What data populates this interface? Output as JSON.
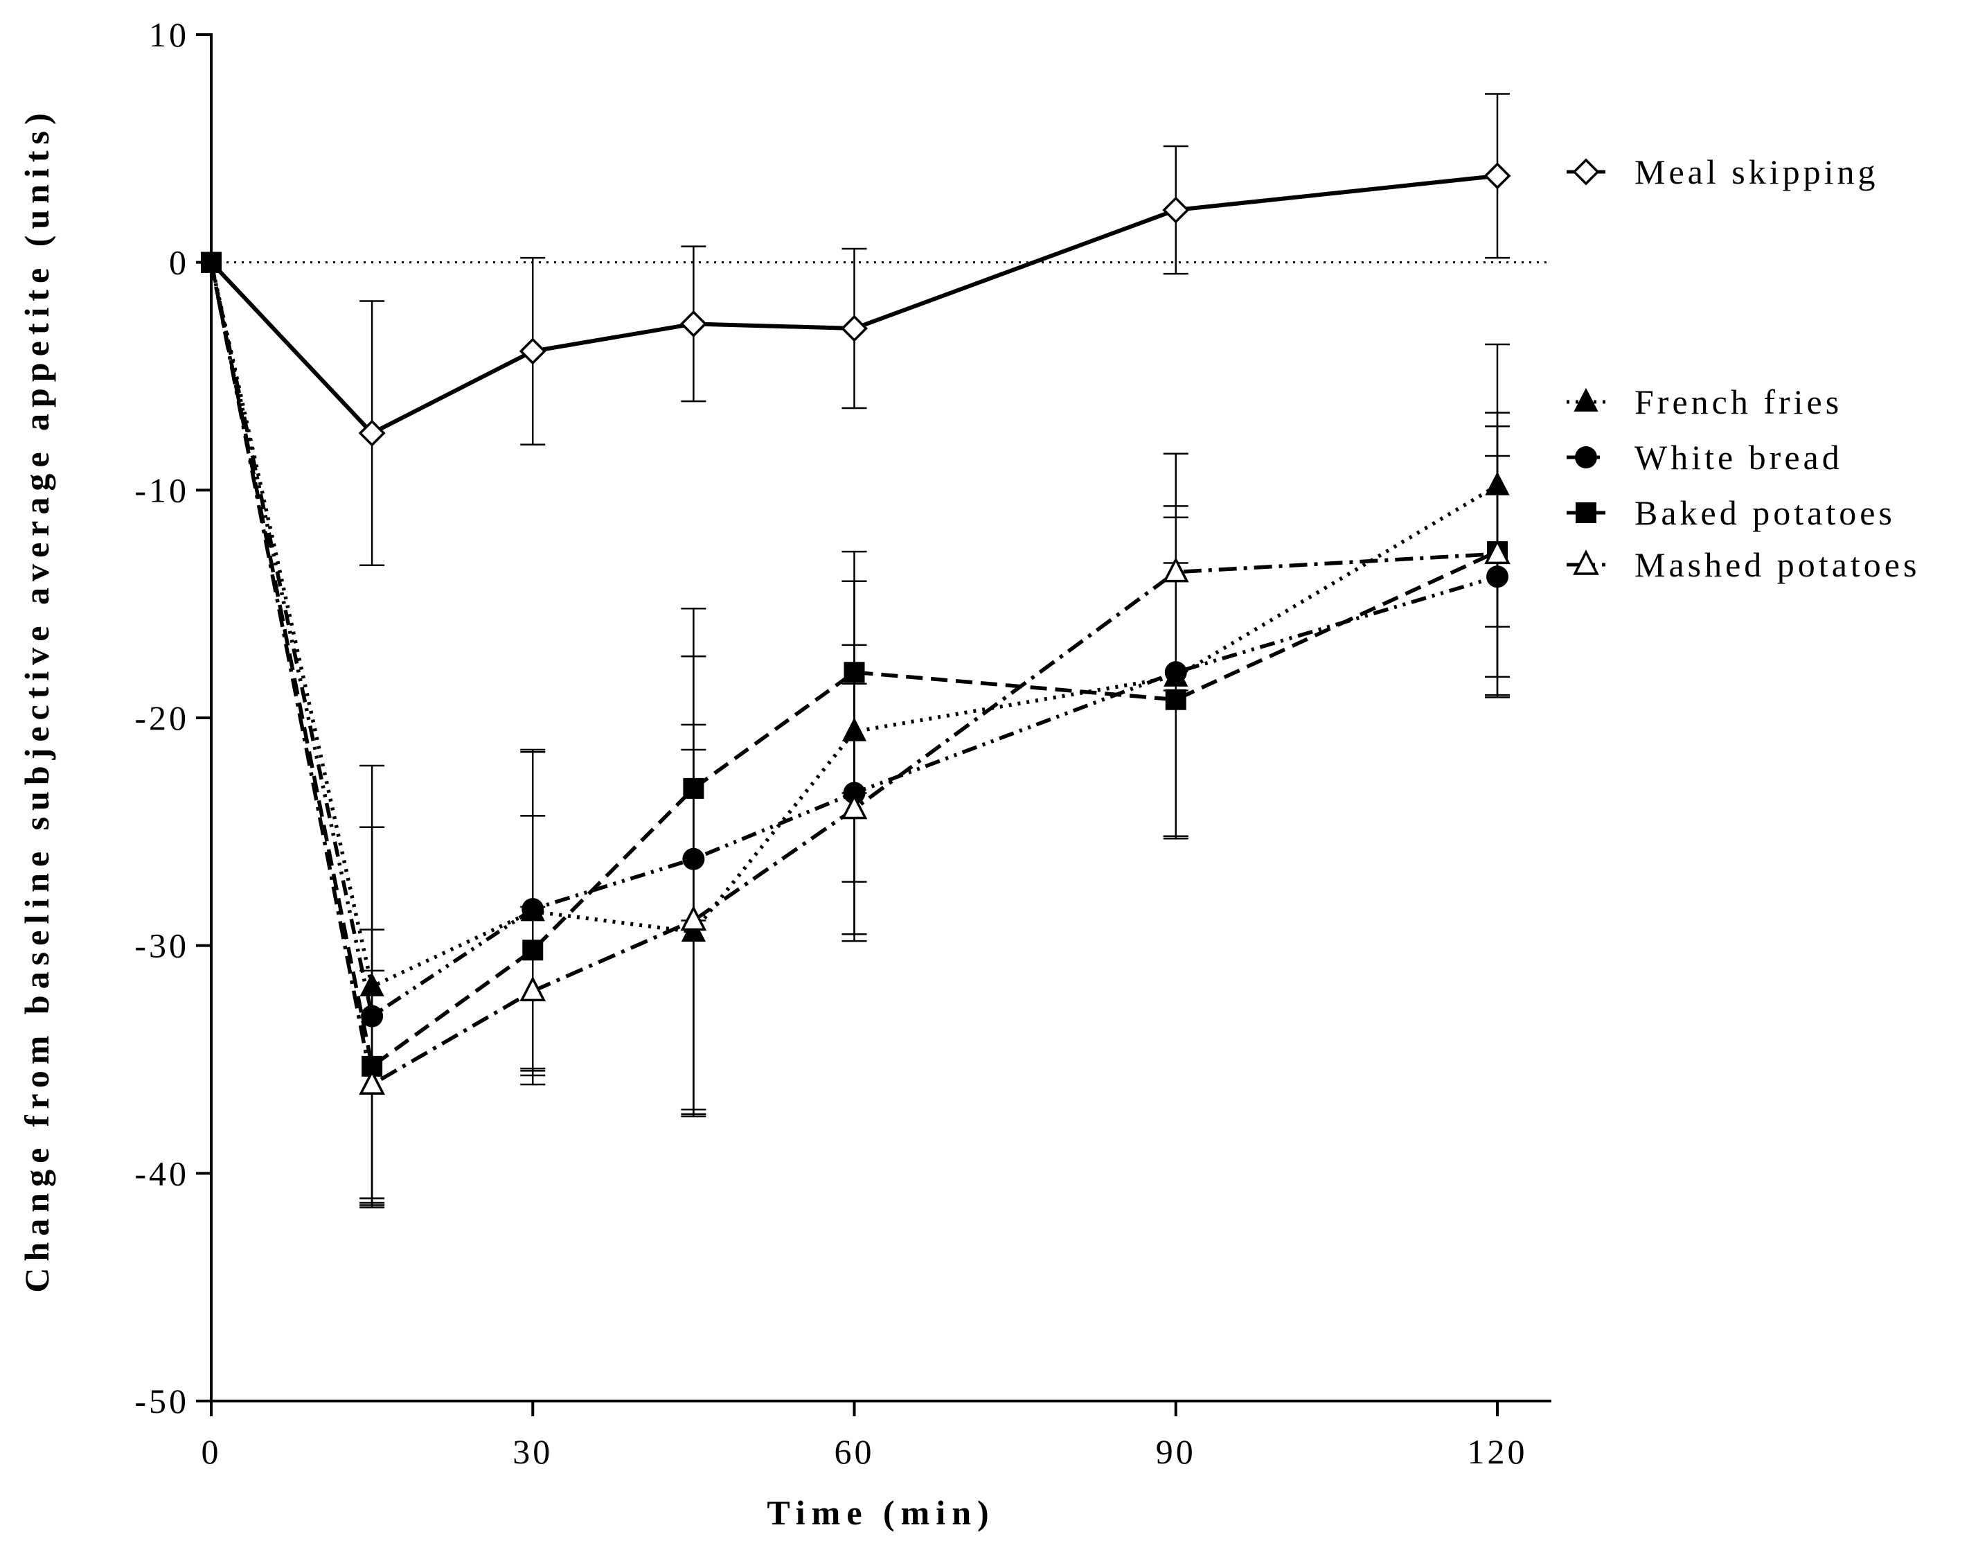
{
  "chart_data": {
    "type": "line",
    "title": "",
    "xlabel": "Time (min)",
    "ylabel": "Change from baseline subjective average appetite (units)",
    "xlim": [
      0,
      120
    ],
    "ylim": [
      -50,
      10
    ],
    "xticks": [
      0,
      30,
      60,
      90,
      120
    ],
    "xtick_labels": [
      "0",
      "30",
      "60",
      "90",
      "120"
    ],
    "yticks": [
      10,
      0,
      -10,
      -20,
      -30,
      -40,
      -50
    ],
    "ytick_labels": [
      "10",
      "0",
      "-10",
      "-20",
      "-30",
      "-40",
      "-50"
    ],
    "reference_line": 0,
    "x": [
      0,
      15,
      30,
      45,
      60,
      90,
      120
    ],
    "series": [
      {
        "name": "Meal skipping",
        "marker": "diamond-open",
        "line": "solid",
        "values": [
          0,
          -7.5,
          -3.9,
          -2.7,
          -2.9,
          2.3,
          3.8
        ],
        "errors": [
          0,
          5.8,
          4.1,
          3.4,
          3.5,
          2.8,
          3.6
        ]
      },
      {
        "name": "French fries",
        "marker": "triangle-filled",
        "line": "dotted",
        "values": [
          0,
          -31.8,
          -28.5,
          -29.4,
          -20.6,
          -18.2,
          -9.8
        ],
        "errors": [
          0,
          9.7,
          7.0,
          8.0,
          6.6,
          7.0,
          6.2
        ]
      },
      {
        "name": "White bread",
        "marker": "circle-filled",
        "line": "dash-dot-dot",
        "values": [
          0,
          -33.1,
          -28.4,
          -26.2,
          -23.3,
          -18.0,
          -13.8
        ],
        "errors": [
          0,
          8.3,
          7.0,
          11.0,
          6.5,
          7.3,
          5.3
        ]
      },
      {
        "name": "Baked potatoes",
        "marker": "square-filled",
        "line": "dashed",
        "values": [
          0,
          -35.3,
          -30.2,
          -23.1,
          -18.0,
          -19.2,
          -12.7
        ],
        "errors": [
          0,
          6.0,
          5.9,
          5.8,
          5.3,
          6.0,
          5.5
        ]
      },
      {
        "name": "Mashed potatoes",
        "marker": "triangle-open",
        "line": "dash-dot",
        "values": [
          0,
          -36.1,
          -32.0,
          -28.9,
          -24.0,
          -13.6,
          -12.8
        ],
        "errors": [
          0,
          5.0,
          3.7,
          8.6,
          5.5,
          5.2,
          6.2
        ]
      }
    ],
    "legend": [
      "Meal skipping",
      "French fries",
      "White bread",
      "Baked potatoes",
      "Mashed potatoes"
    ]
  }
}
